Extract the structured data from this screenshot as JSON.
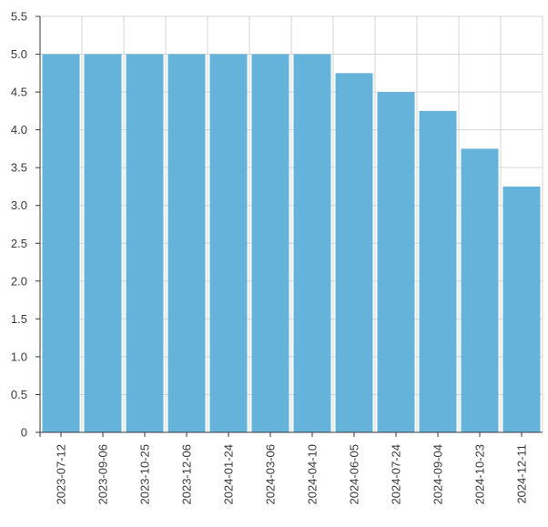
{
  "chart_data": {
    "type": "bar",
    "title": "",
    "xlabel": "",
    "ylabel": "",
    "categories": [
      "2023-07-12",
      "2023-09-06",
      "2023-10-25",
      "2023-12-06",
      "2024-01-24",
      "2024-03-06",
      "2024-04-10",
      "2024-06-05",
      "2024-07-24",
      "2024-09-04",
      "2024-10-23",
      "2024-12-11"
    ],
    "values": [
      5.0,
      5.0,
      5.0,
      5.0,
      5.0,
      5.0,
      5.0,
      4.75,
      4.5,
      4.25,
      3.75,
      3.25
    ],
    "ylim": [
      0,
      5.5
    ],
    "yticks": [
      "0",
      "0.5",
      "1.0",
      "1.5",
      "2.0",
      "2.5",
      "3.0",
      "3.5",
      "4.0",
      "4.5",
      "5.0",
      "5.5"
    ],
    "grid": true,
    "legend": "none",
    "colors": {
      "bar": "#65b2da",
      "grid": "#d6d6d6",
      "axis": "#3a3a3a"
    }
  }
}
